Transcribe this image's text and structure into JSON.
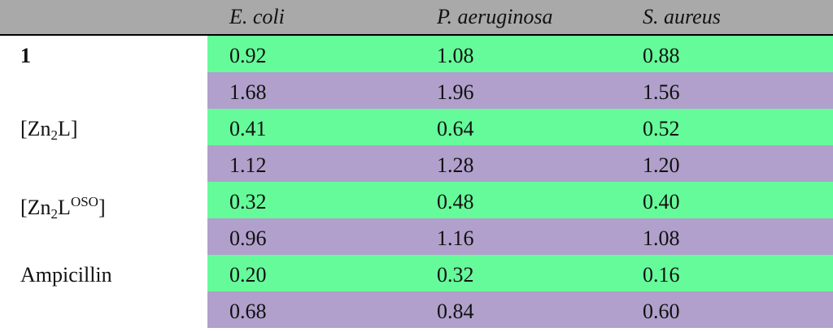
{
  "table": {
    "columns": [
      "E. coli",
      "P. aeruginosa",
      "S. aureus"
    ],
    "groups": [
      {
        "label": [
          {
            "text": "1"
          }
        ],
        "rows": [
          [
            "0.92",
            "1.08",
            "0.88"
          ],
          [
            "1.68",
            "1.96",
            "1.56"
          ]
        ]
      },
      {
        "label": [
          {
            "text": "[Zn"
          },
          {
            "sub": "2"
          },
          {
            "text": "L]"
          }
        ],
        "rows": [
          [
            "0.41",
            "0.64",
            "0.52"
          ],
          [
            "1.12",
            "1.28",
            "1.20"
          ]
        ]
      },
      {
        "label": [
          {
            "text": "[Zn"
          },
          {
            "sub": "2"
          },
          {
            "text": "L"
          },
          {
            "sup": "OSO"
          },
          {
            "text": "]"
          }
        ],
        "rows": [
          [
            "0.32",
            "0.48",
            "0.40"
          ],
          [
            "0.96",
            "1.16",
            "1.08"
          ]
        ]
      },
      {
        "label": [
          {
            "text": "Ampicillin"
          }
        ],
        "rows": [
          [
            "0.20",
            "0.32",
            "0.16"
          ],
          [
            "0.68",
            "0.84",
            "0.60"
          ]
        ]
      }
    ]
  }
}
